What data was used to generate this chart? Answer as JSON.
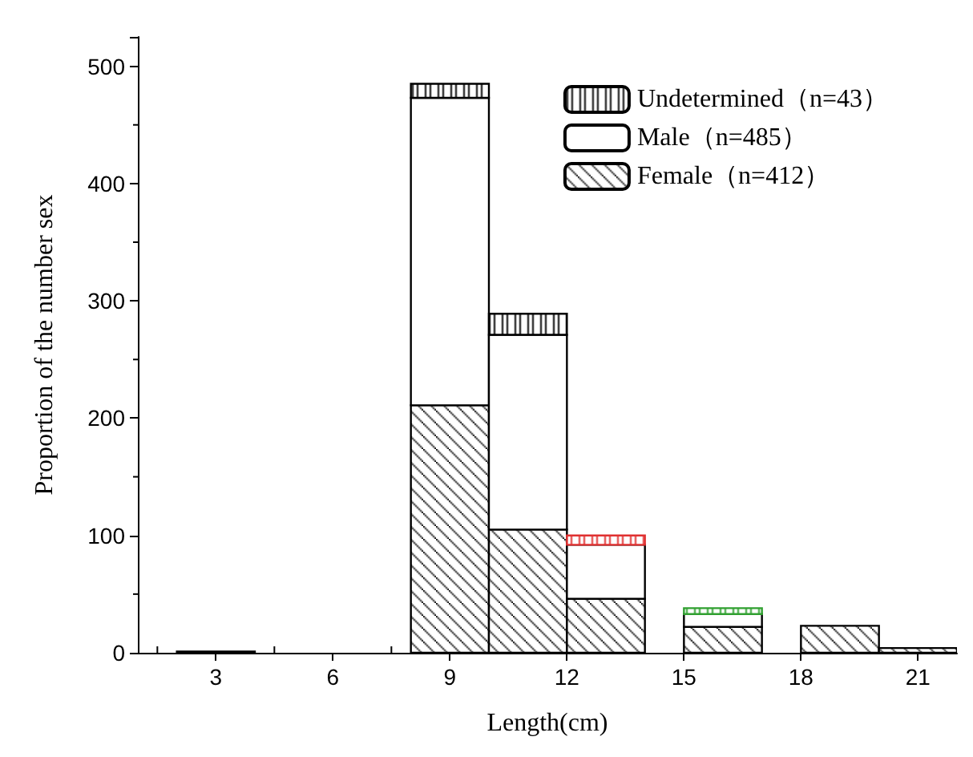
{
  "chart_data": {
    "type": "bar",
    "stacked": true,
    "xlabel": "Length(cm)",
    "ylabel": "Proportion of the number sex",
    "x": [
      3,
      9,
      11,
      13,
      16,
      19,
      21
    ],
    "series": [
      {
        "name": "Female（n=412）",
        "color": "#000000",
        "values": [
          1,
          211,
          105,
          46,
          22,
          23,
          4
        ]
      },
      {
        "name": "Male（n=485）",
        "color": "#000000",
        "values": [
          0,
          262,
          166,
          46,
          11,
          0,
          0
        ]
      },
      {
        "name": "Undetermined（n=43）",
        "color": "#000000",
        "colors": [
          null,
          "#000000",
          "#000000",
          "#e03030",
          "#30a030",
          null,
          null
        ],
        "values": [
          0,
          12,
          18,
          8,
          5,
          0,
          0
        ]
      }
    ],
    "xlim": [
      1,
      22
    ],
    "xticks": [
      3,
      6,
      9,
      12,
      15,
      18,
      21
    ],
    "ylim": [
      0,
      525
    ],
    "yticks": [
      0,
      100,
      200,
      300,
      400,
      500
    ],
    "legend": "top right",
    "grid": false
  }
}
